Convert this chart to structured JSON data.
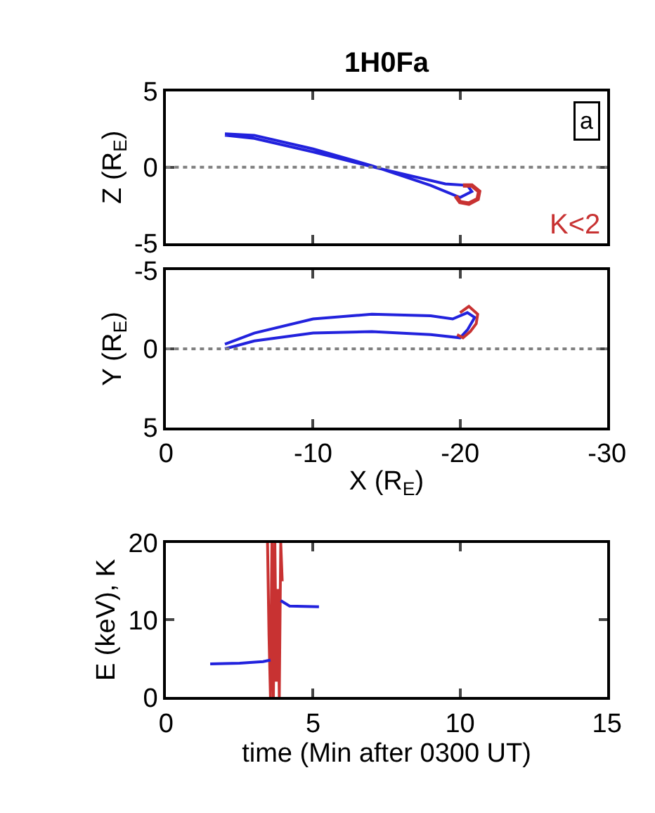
{
  "chart_data": [
    {
      "type": "line",
      "title": "1H0Fa",
      "ylabel": "Z (R$_{E}$)",
      "xlim": [
        0,
        -30
      ],
      "xticks": [
        0,
        -10,
        -20,
        -30
      ],
      "ylim": [
        -5,
        5
      ],
      "yticks": [
        -5,
        0,
        5
      ],
      "tick_labels": "y",
      "annotations": [
        "a",
        "K<2"
      ],
      "ref_lines": [
        {
          "axis": "y",
          "value": 0,
          "color": "#808080",
          "line_style": "dotted"
        }
      ],
      "series": [
        {
          "color": "#2222dd",
          "x": [
            -4,
            -6,
            -10,
            -14,
            -18,
            -20,
            -20.8,
            -20.5,
            -19,
            -15,
            -10,
            -6,
            -4
          ],
          "values": [
            2.2,
            2.1,
            1.2,
            0.1,
            -1.2,
            -2.0,
            -1.6,
            -1.2,
            -1.1,
            -0.2,
            1.0,
            1.9,
            2.1
          ]
        },
        {
          "color": "#c83232",
          "x": [
            -20.2,
            -20.8,
            -21.3,
            -21.2,
            -20.6,
            -20.0,
            -19.7
          ],
          "values": [
            -1.2,
            -1.2,
            -1.6,
            -2.1,
            -2.4,
            -2.3,
            -1.9
          ]
        }
      ]
    },
    {
      "type": "line",
      "xlabel": "X (R$_{E}$)",
      "ylabel": "Y (R$_{E}$)",
      "xlim": [
        0,
        -30
      ],
      "xticks": [
        0,
        -10,
        -20,
        -30
      ],
      "ylim": [
        5,
        -5
      ],
      "yticks": [
        -5,
        0,
        5
      ],
      "ref_lines": [
        {
          "axis": "y",
          "value": 0,
          "color": "#808080",
          "line_style": "dotted"
        }
      ],
      "series": [
        {
          "color": "#2222dd",
          "x": [
            -4,
            -6,
            -10,
            -14,
            -18,
            -19.5,
            -20.5,
            -21,
            -20.5,
            -20,
            -18,
            -14,
            -10,
            -6,
            -4
          ],
          "values": [
            -0.3,
            -1.0,
            -1.9,
            -2.2,
            -2.1,
            -1.9,
            -2.3,
            -2.0,
            -1.2,
            -0.7,
            -0.9,
            -1.1,
            -1.0,
            -0.5,
            0.0
          ]
        },
        {
          "color": "#c83232",
          "x": [
            -20.0,
            -20.6,
            -21.2,
            -21.1,
            -20.7,
            -20.2,
            -19.8
          ],
          "values": [
            -2.3,
            -2.7,
            -2.2,
            -1.6,
            -1.1,
            -0.7,
            -0.9
          ]
        }
      ]
    },
    {
      "type": "line",
      "xlabel": "time (Min after 0300 UT)",
      "ylabel": "E (keV), K",
      "xlim": [
        0,
        15
      ],
      "xticks": [
        0,
        5,
        10,
        15
      ],
      "ylim": [
        0,
        20
      ],
      "yticks": [
        0,
        10,
        20
      ],
      "series": [
        {
          "color": "#c83232",
          "x": [
            3.45,
            3.5,
            3.55,
            3.6,
            3.65,
            3.7,
            3.75,
            3.8,
            3.85,
            3.9,
            3.95
          ],
          "values": [
            20,
            8,
            0,
            20,
            0,
            20,
            2,
            14,
            0,
            20,
            15
          ]
        },
        {
          "color": "#2222dd",
          "x": [
            1.5,
            2.5,
            3.3,
            3.55,
            3.7,
            3.9,
            4.2,
            5.2
          ],
          "values": [
            4.3,
            4.4,
            4.6,
            4.8,
            null,
            12.5,
            11.8,
            11.7
          ]
        }
      ]
    }
  ]
}
